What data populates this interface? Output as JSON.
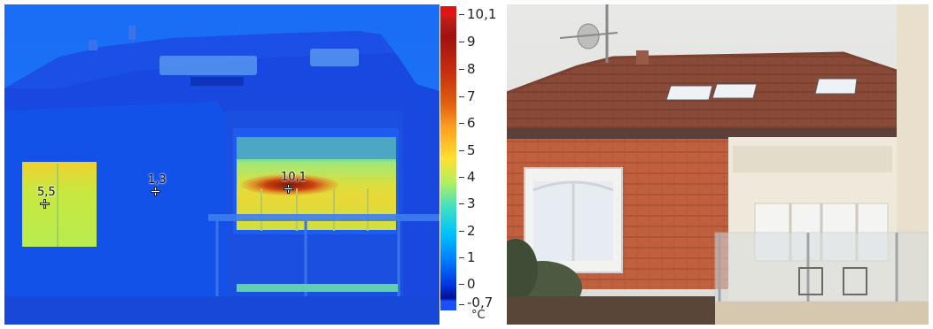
{
  "thermal": {
    "unit": "°C",
    "scale_max_label": "10,1",
    "scale_min_label": "-0,7",
    "scale_ticks": [
      "9",
      "8",
      "7",
      "6",
      "5",
      "4",
      "3",
      "2",
      "1",
      "0"
    ],
    "spots": [
      {
        "label": "5,5"
      },
      {
        "label": "1,3"
      },
      {
        "label": "10,1"
      }
    ]
  },
  "photo": {
    "subject": "house with tiled roof, dormer window and glass balcony"
  }
}
